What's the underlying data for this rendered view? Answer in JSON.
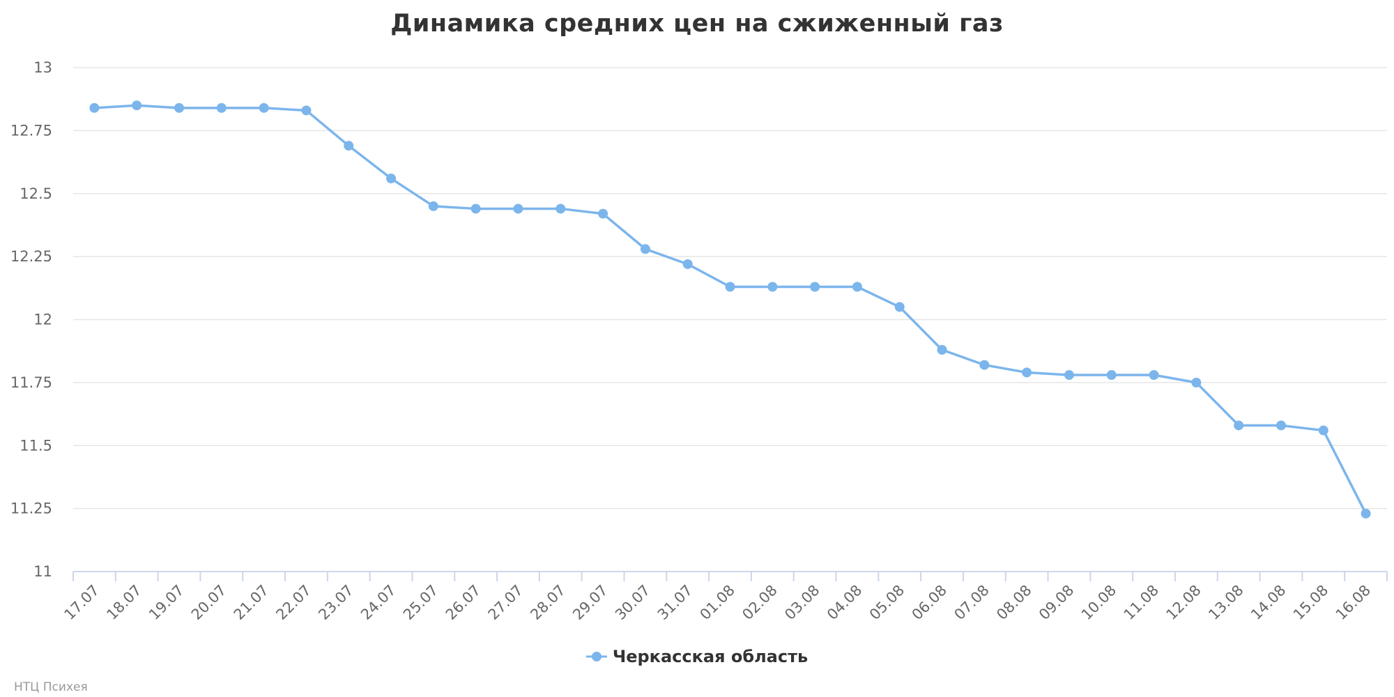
{
  "chart_data": {
    "type": "line",
    "title": "Динамика средних цен на сжиженный газ",
    "categories": [
      "17.07",
      "18.07",
      "19.07",
      "20.07",
      "21.07",
      "22.07",
      "23.07",
      "24.07",
      "25.07",
      "26.07",
      "27.07",
      "28.07",
      "29.07",
      "30.07",
      "31.07",
      "01.08",
      "02.08",
      "03.08",
      "04.08",
      "05.08",
      "06.08",
      "07.08",
      "08.08",
      "09.08",
      "10.08",
      "11.08",
      "12.08",
      "13.08",
      "14.08",
      "15.08",
      "16.08"
    ],
    "series": [
      {
        "name": "Черкасская область",
        "color": "#7cb5ec",
        "values": [
          12.84,
          12.85,
          12.84,
          12.84,
          12.84,
          12.83,
          12.69,
          12.56,
          12.45,
          12.44,
          12.44,
          12.44,
          12.42,
          12.28,
          12.22,
          12.13,
          12.13,
          12.13,
          12.13,
          12.05,
          11.88,
          11.82,
          11.79,
          11.78,
          11.78,
          11.78,
          11.75,
          11.58,
          11.58,
          11.56,
          11.23
        ]
      }
    ],
    "ylim": [
      11,
      13
    ],
    "yticks": [
      "11",
      "11.25",
      "11.5",
      "11.75",
      "12",
      "12.25",
      "12.5",
      "12.75",
      "13"
    ],
    "grid": true,
    "legend_position": "bottom-center"
  },
  "credits": "НТЦ Психея"
}
